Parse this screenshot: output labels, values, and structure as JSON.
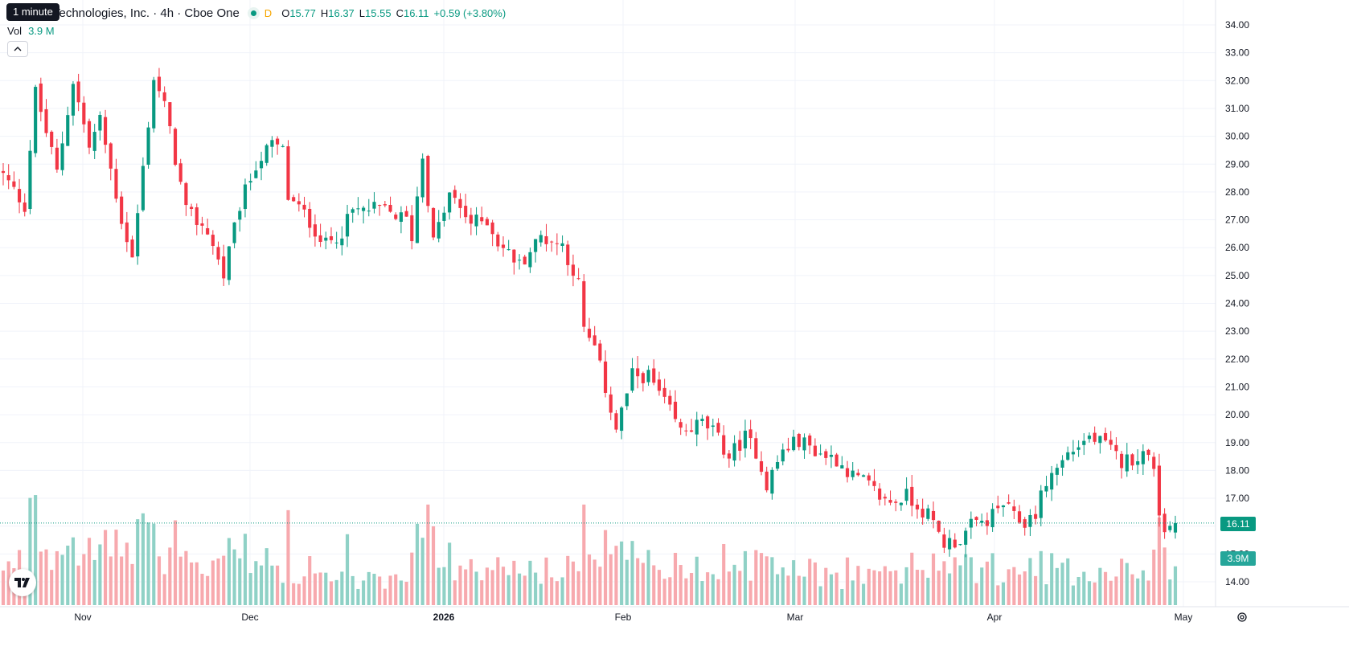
{
  "legend": {
    "title": "Technologies, Inc. · 4h · Cboe One",
    "interval_flag": "D",
    "open_label": "O",
    "open": "15.77",
    "high_label": "H",
    "high": "16.37",
    "low_label": "L",
    "low": "15.55",
    "close_label": "C",
    "close": "16.11",
    "change": "+0.59 (+3.80%)"
  },
  "tooltip": "1 minute",
  "volume": {
    "label": "Vol",
    "value": "3.9 M"
  },
  "price_tags": {
    "last_price": "16.11",
    "last_volume": "3.9M"
  },
  "icons": {
    "collapse": "chevron-up-icon",
    "logo": "tradingview-logo-icon",
    "settings": "gear-icon"
  },
  "colors": {
    "up": "#089981",
    "down": "#f23645",
    "up_volume": "#8fd1c6",
    "down_volume": "#f7a9ae",
    "grid": "#f0f3fa"
  },
  "chart_data": {
    "type": "candlestick",
    "y_ticks": [
      "14.00",
      "15.00",
      "16.00",
      "17.00",
      "18.00",
      "19.00",
      "20.00",
      "21.00",
      "22.00",
      "23.00",
      "24.00",
      "25.00",
      "26.00",
      "27.00",
      "28.00",
      "29.00",
      "30.00",
      "31.00",
      "32.00",
      "33.00",
      "34.00"
    ],
    "x_ticks": [
      "Nov",
      "Dec",
      "2026",
      "Feb",
      "Mar",
      "Apr",
      "May"
    ],
    "ylim": [
      13.2,
      34.4
    ],
    "last_price": 16.11,
    "close_path": [
      [
        0,
        28.6
      ],
      [
        4,
        27.5
      ],
      [
        6,
        31.6
      ],
      [
        10,
        28.7
      ],
      [
        13,
        32.0
      ],
      [
        16,
        29.6
      ],
      [
        18,
        30.6
      ],
      [
        22,
        27.0
      ],
      [
        24,
        25.6
      ],
      [
        28,
        32.1
      ],
      [
        30,
        31.1
      ],
      [
        34,
        27.3
      ],
      [
        38,
        26.6
      ],
      [
        41,
        25.0
      ],
      [
        44,
        27.5
      ],
      [
        47,
        29.0
      ],
      [
        50,
        29.7
      ],
      [
        52,
        29.5
      ],
      [
        53,
        27.8
      ],
      [
        56,
        27.2
      ],
      [
        60,
        26.1
      ],
      [
        63,
        26.6
      ],
      [
        65,
        27.3
      ],
      [
        70,
        27.4
      ],
      [
        75,
        27.0
      ],
      [
        76,
        26.4
      ],
      [
        78,
        29.3
      ],
      [
        80,
        26.2
      ],
      [
        83,
        27.9
      ],
      [
        87,
        26.9
      ],
      [
        90,
        27.0
      ],
      [
        92,
        26.2
      ],
      [
        96,
        25.4
      ],
      [
        100,
        26.4
      ],
      [
        104,
        26.1
      ],
      [
        107,
        24.7
      ],
      [
        108,
        23.0
      ],
      [
        110,
        22.4
      ],
      [
        114,
        19.5
      ],
      [
        117,
        21.4
      ],
      [
        120,
        21.4
      ],
      [
        124,
        20.1
      ],
      [
        126,
        19.4
      ],
      [
        130,
        19.7
      ],
      [
        132,
        19.4
      ],
      [
        135,
        18.5
      ],
      [
        138,
        19.2
      ],
      [
        140,
        18.7
      ],
      [
        142,
        17.5
      ],
      [
        145,
        18.7
      ],
      [
        148,
        19.1
      ],
      [
        152,
        18.6
      ],
      [
        155,
        18.4
      ],
      [
        158,
        17.8
      ],
      [
        160,
        17.6
      ],
      [
        164,
        16.9
      ],
      [
        166,
        16.9
      ],
      [
        168,
        17.1
      ],
      [
        172,
        16.4
      ],
      [
        175,
        15.4
      ],
      [
        178,
        15.5
      ],
      [
        180,
        16.0
      ],
      [
        183,
        16.2
      ],
      [
        186,
        16.8
      ],
      [
        188,
        16.3
      ],
      [
        190,
        16.1
      ],
      [
        192,
        16.5
      ],
      [
        194,
        17.6
      ],
      [
        198,
        18.6
      ],
      [
        202,
        19.2
      ],
      [
        205,
        18.9
      ],
      [
        208,
        18.3
      ],
      [
        212,
        18.6
      ],
      [
        214,
        18.2
      ],
      [
        215,
        16.5
      ],
      [
        216,
        15.9
      ],
      [
        218,
        16.11
      ]
    ],
    "volume_ylim": [
      0,
      13
    ],
    "volume_max_label": "3.9M"
  }
}
